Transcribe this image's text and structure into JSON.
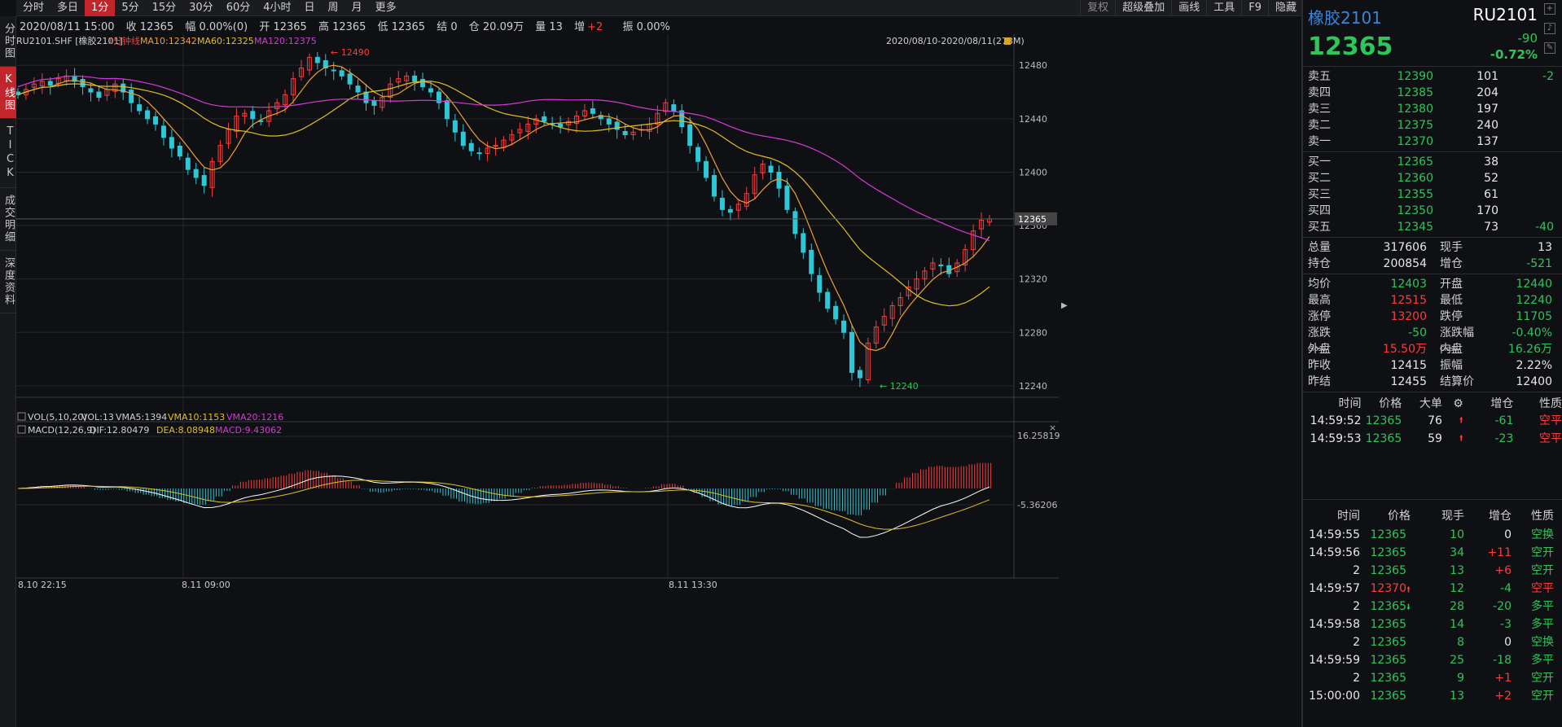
{
  "toolbar": {
    "items": [
      "分时",
      "多日",
      "1分",
      "5分",
      "15分",
      "30分",
      "60分",
      "4小时",
      "日",
      "周",
      "月",
      "更多"
    ],
    "active_index": 2,
    "right_items": [
      "复权",
      "超级叠加",
      "画线",
      "工具",
      "F9",
      "隐藏"
    ]
  },
  "left_tabs": [
    "分时图",
    "K线图",
    "TICK",
    "成交明细",
    "深度资料"
  ],
  "left_tabs_active": 1,
  "infoline": {
    "datetime": "2020/08/11 15:00",
    "close": "收 12365",
    "amp": "幅 0.00%(0)",
    "open": "开 12365",
    "high": "高 12365",
    "low": "低 12365",
    "settle": "结 0",
    "position": "仓 20.09万",
    "volume": "量 13",
    "increase_label": "增",
    "increase_value": "+2",
    "swing": "振 0.00%"
  },
  "legend": {
    "symbol": "RU2101.SHF [橡胶2101]",
    "period": "1分钟线",
    "ma10": "MA10:12342",
    "ma60": "MA60:12325",
    "ma120": "MA120:12375",
    "range": "2020/08/10-2020/08/11(273M)"
  },
  "vol_legend": {
    "name": "VOL(5,10,20)",
    "vol": "VOL:13",
    "vma5": "VMA5:1394",
    "vma10": "VMA10:1153",
    "vma20": "VMA20:1216"
  },
  "macd_legend": {
    "name": "MACD(12,26,9)",
    "dif": "DIF:12.80479",
    "dea": "DEA:8.08948",
    "macd": "MACD:9.43062"
  },
  "colors": {
    "up": "#ff3b3b",
    "down": "#2ec7d6",
    "ma10": "#f0a030",
    "ma60": "#e0c020",
    "ma120": "#d63ad6",
    "dif": "#ffffff",
    "dea": "#e0c020"
  },
  "chart_data": {
    "type": "candlestick",
    "price_axis_ticks": [
      "12480",
      "12440",
      "12400",
      "12360",
      "12320",
      "12280",
      "12240"
    ],
    "price_range": [
      12232,
      12496
    ],
    "current_price_label": "12365",
    "high_marker": "12490",
    "low_marker": "12240",
    "macd_axis_ticks": [
      "16.25819",
      "-5.36206"
    ],
    "time_labels": [
      "8.10 22:15",
      "8.11 09:00",
      "8.11 13:30"
    ],
    "close_series": [
      12458,
      12462,
      12466,
      12468,
      12465,
      12470,
      12472,
      12468,
      12464,
      12460,
      12456,
      12462,
      12466,
      12460,
      12452,
      12446,
      12440,
      12436,
      12426,
      12418,
      12412,
      12402,
      12396,
      12390,
      12408,
      12420,
      12432,
      12442,
      12444,
      12440,
      12438,
      12446,
      12452,
      12458,
      12470,
      12478,
      12486,
      12482,
      12478,
      12476,
      12472,
      12466,
      12460,
      12452,
      12450,
      12456,
      12466,
      12470,
      12472,
      12468,
      12464,
      12460,
      12452,
      12440,
      12430,
      12420,
      12416,
      12414,
      12418,
      12420,
      12424,
      12428,
      12432,
      12436,
      12440,
      12438,
      12436,
      12434,
      12438,
      12442,
      12446,
      12444,
      12440,
      12436,
      12432,
      12428,
      12430,
      12432,
      12436,
      12444,
      12452,
      12446,
      12434,
      12420,
      12408,
      12396,
      12382,
      12372,
      12370,
      12376,
      12384,
      12398,
      12406,
      12400,
      12388,
      12372,
      12354,
      12340,
      12324,
      12310,
      12298,
      12290,
      12280,
      12250,
      12246,
      12272,
      12284,
      12292,
      12300,
      12306,
      12314,
      12320,
      12326,
      12332,
      12330,
      12324,
      12332,
      12342,
      12356,
      12364,
      12365
    ]
  },
  "quote": {
    "name": "橡胶2101",
    "code": "RU2101",
    "price": "12365",
    "change": "-90",
    "change_pct": "-0.72%"
  },
  "orderbook": {
    "asks": [
      {
        "label": "卖五",
        "price": "12390",
        "vol": "101",
        "chg": "-2"
      },
      {
        "label": "卖四",
        "price": "12385",
        "vol": "204",
        "chg": ""
      },
      {
        "label": "卖三",
        "price": "12380",
        "vol": "197",
        "chg": ""
      },
      {
        "label": "卖二",
        "price": "12375",
        "vol": "240",
        "chg": ""
      },
      {
        "label": "卖一",
        "price": "12370",
        "vol": "137",
        "chg": ""
      }
    ],
    "bids": [
      {
        "label": "买一",
        "price": "12365",
        "vol": "38",
        "chg": ""
      },
      {
        "label": "买二",
        "price": "12360",
        "vol": "52",
        "chg": ""
      },
      {
        "label": "买三",
        "price": "12355",
        "vol": "61",
        "chg": ""
      },
      {
        "label": "买四",
        "price": "12350",
        "vol": "170",
        "chg": ""
      },
      {
        "label": "买五",
        "price": "12345",
        "vol": "73",
        "chg": "-40"
      }
    ]
  },
  "stats": {
    "r1": {
      "k": "总量",
      "v": "317606",
      "k2": "现手",
      "v2": "13"
    },
    "r2": {
      "k": "持仓",
      "v": "200854",
      "k2": "增仓",
      "v2": "-521"
    },
    "r3": {
      "k": "均价",
      "v": "12403",
      "k2": "开盘",
      "v2": "12440"
    },
    "r4": {
      "k": "最高",
      "v": "12515",
      "k2": "最低",
      "v2": "12240"
    },
    "r5": {
      "k": "涨停",
      "v": "13200",
      "k2": "跌停",
      "v2": "11705"
    },
    "r6": {
      "k": "涨跌",
      "ksup": "Close",
      "v": "-50",
      "k2": "涨跌幅",
      "k2sup": "Close",
      "v2": "-0.40%"
    },
    "r7": {
      "k": "外盘",
      "v": "15.50万",
      "k2": "内盘",
      "v2": "16.26万"
    },
    "r8": {
      "k": "昨收",
      "v": "12415",
      "k2": "振幅",
      "v2": "2.22%"
    },
    "r9": {
      "k": "昨结",
      "v": "12455",
      "k2": "结算价",
      "v2": "12400"
    }
  },
  "big_trades": {
    "headers": [
      "时间",
      "价格",
      "大单",
      "增仓",
      "性质"
    ],
    "rows": [
      {
        "time": "14:59:52",
        "price": "12365",
        "size": "76",
        "dir": "up",
        "oi": "-61",
        "nature": "空平"
      },
      {
        "time": "14:59:53",
        "price": "12365",
        "size": "59",
        "dir": "up",
        "oi": "-23",
        "nature": "空平"
      }
    ]
  },
  "ticks": {
    "headers": [
      "时间",
      "价格",
      "现手",
      "增仓",
      "性质"
    ],
    "rows": [
      {
        "time": "14:59:55",
        "price": "12365",
        "pc": "green",
        "arrow": "",
        "vol": "10",
        "oi": "0",
        "oic": "white",
        "nature": "空换",
        "nc": "green"
      },
      {
        "time": "14:59:56",
        "price": "12365",
        "pc": "green",
        "arrow": "",
        "vol": "34",
        "oi": "+11",
        "oic": "red",
        "nature": "空开",
        "nc": "green"
      },
      {
        "time": "2",
        "price": "12365",
        "pc": "green",
        "arrow": "",
        "vol": "13",
        "oi": "+6",
        "oic": "red",
        "nature": "空开",
        "nc": "green"
      },
      {
        "time": "14:59:57",
        "price": "12370",
        "pc": "red",
        "arrow": "up",
        "vol": "12",
        "oi": "-4",
        "oic": "green",
        "nature": "空平",
        "nc": "red"
      },
      {
        "time": "2",
        "price": "12365",
        "pc": "green",
        "arrow": "down",
        "vol": "28",
        "oi": "-20",
        "oic": "green",
        "nature": "多平",
        "nc": "green"
      },
      {
        "time": "14:59:58",
        "price": "12365",
        "pc": "green",
        "arrow": "",
        "vol": "14",
        "oi": "-3",
        "oic": "green",
        "nature": "多平",
        "nc": "green"
      },
      {
        "time": "2",
        "price": "12365",
        "pc": "green",
        "arrow": "",
        "vol": "8",
        "oi": "0",
        "oic": "white",
        "nature": "空换",
        "nc": "green"
      },
      {
        "time": "14:59:59",
        "price": "12365",
        "pc": "green",
        "arrow": "",
        "vol": "25",
        "oi": "-18",
        "oic": "green",
        "nature": "多平",
        "nc": "green"
      },
      {
        "time": "2",
        "price": "12365",
        "pc": "green",
        "arrow": "",
        "vol": "9",
        "oi": "+1",
        "oic": "red",
        "nature": "空开",
        "nc": "green"
      },
      {
        "time": "15:00:00",
        "price": "12365",
        "pc": "green",
        "arrow": "",
        "vol": "13",
        "oi": "+2",
        "oic": "red",
        "nature": "空开",
        "nc": "green"
      }
    ]
  }
}
